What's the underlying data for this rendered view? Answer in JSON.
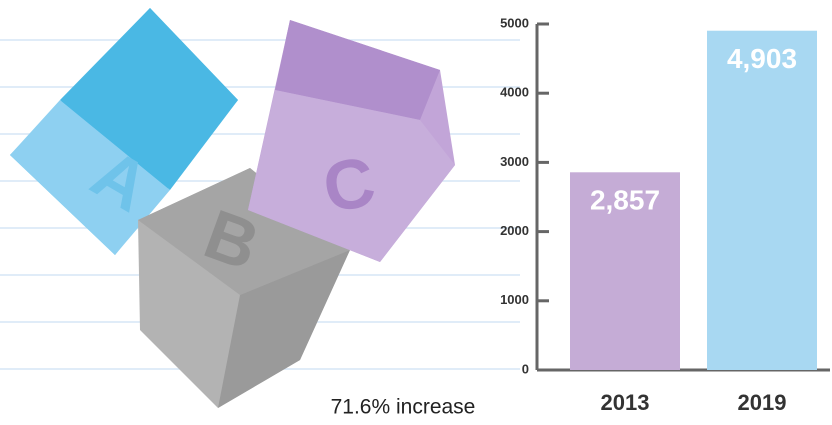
{
  "illustration_letters": [
    "A",
    "B",
    "C"
  ],
  "chart_data": {
    "type": "bar",
    "annotation": "71.6% increase",
    "categories": [
      "2013",
      "2019"
    ],
    "values": [
      2857,
      4903
    ],
    "value_labels": [
      "2,857",
      "4,903"
    ],
    "colors": [
      "#c5acd6",
      "#a8d8f2"
    ],
    "ylim": [
      0,
      5000
    ],
    "yticks": [
      0,
      1000,
      2000,
      3000,
      4000,
      5000
    ]
  }
}
